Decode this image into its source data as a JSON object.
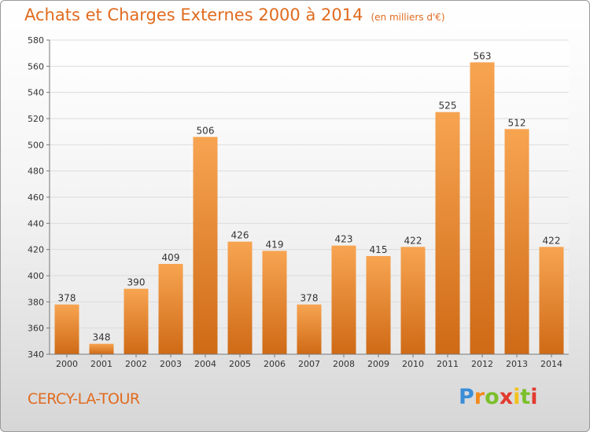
{
  "header": {
    "title": "Achats et Charges Externes 2000 à 2014",
    "subtitle": "(en milliers d'€)"
  },
  "footer": {
    "place": "CERCY-LA-TOUR",
    "logo_text": "Proxiti"
  },
  "colors": {
    "bar_light": "#f7a451",
    "bar_dark": "#cf6a16",
    "title": "#e06b1f"
  },
  "chart_data": {
    "type": "bar",
    "title": "Achats et Charges Externes 2000 à 2014",
    "subtitle": "(en milliers d'€)",
    "categories": [
      "2000",
      "2001",
      "2002",
      "2003",
      "2004",
      "2005",
      "2006",
      "2007",
      "2008",
      "2009",
      "2010",
      "2011",
      "2012",
      "2013",
      "2014"
    ],
    "values": [
      378,
      348,
      390,
      409,
      506,
      426,
      419,
      378,
      423,
      415,
      422,
      525,
      563,
      512,
      422
    ],
    "xlabel": "",
    "ylabel": "",
    "ylim": [
      340,
      580
    ],
    "yticks": [
      340,
      360,
      380,
      400,
      420,
      440,
      460,
      480,
      500,
      520,
      540,
      560,
      580
    ],
    "grid": true,
    "data_labels": true
  }
}
